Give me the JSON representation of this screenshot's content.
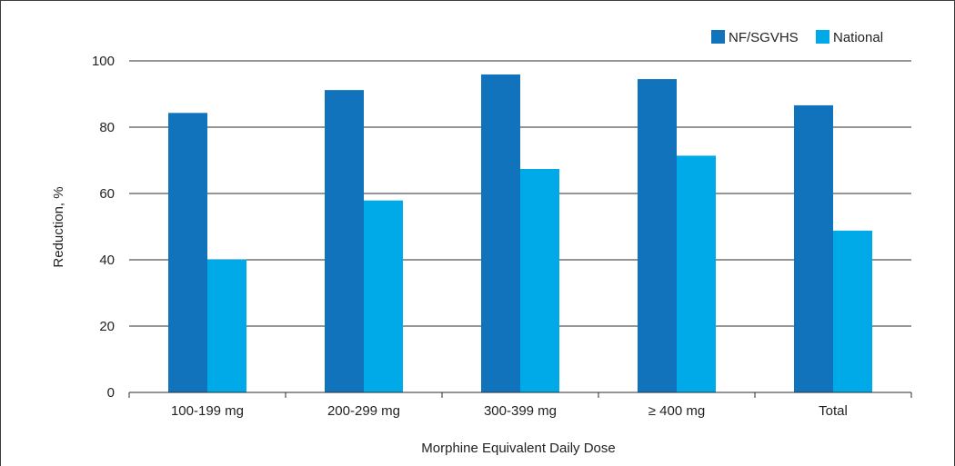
{
  "chart_data": {
    "type": "bar",
    "title": "",
    "xlabel": "Morphine Equivalent Daily Dose",
    "ylabel": "Reduction, %",
    "ylim": [
      0,
      100
    ],
    "yticks": [
      0,
      20,
      40,
      60,
      80,
      100
    ],
    "grid": true,
    "legend_position": "top-right",
    "categories": [
      "100-199 mg",
      "200-299 mg",
      "300-399 mg",
      "≥ 400 mg",
      "Total"
    ],
    "series": [
      {
        "name": "NF/SGVHS",
        "color": "#1273bd",
        "values": [
          84.3,
          91.2,
          95.9,
          94.5,
          86.6
        ]
      },
      {
        "name": "National",
        "color": "#00aae9",
        "values": [
          40.1,
          57.9,
          67.4,
          71.4,
          48.8
        ]
      }
    ]
  }
}
